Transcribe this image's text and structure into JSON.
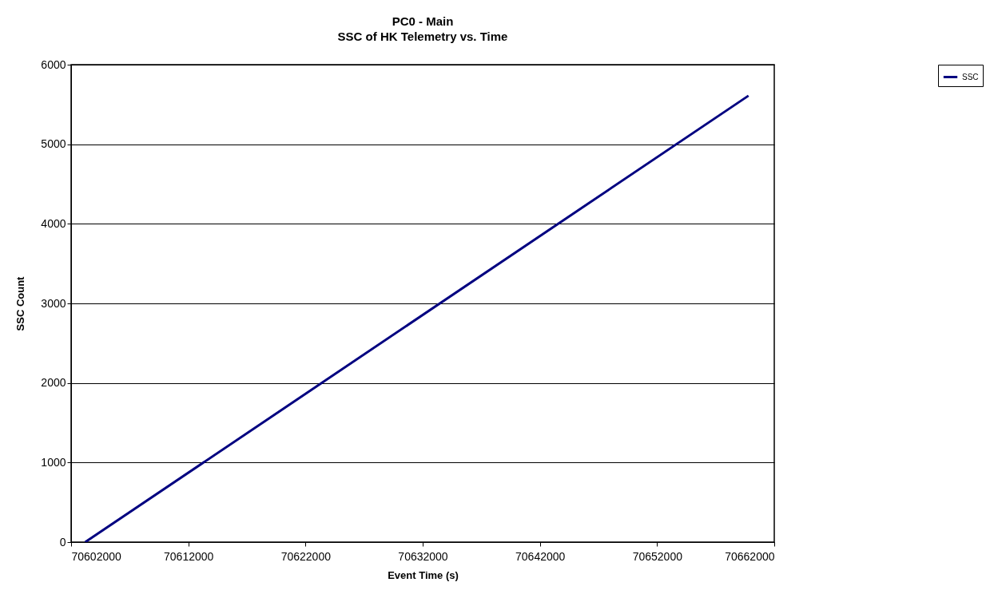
{
  "chart_data": {
    "type": "line",
    "title": "PC0 - Main",
    "subtitle": "SSC of HK Telemetry vs. Time",
    "xlabel": "Event Time (s)",
    "ylabel": "SSC Count",
    "series": [
      {
        "name": "SSC",
        "color": "#000080",
        "x": [
          70603200,
          70659800
        ],
        "values": [
          0,
          5610
        ]
      }
    ],
    "xlim": [
      70602000,
      70662000
    ],
    "xticks": [
      70602000,
      70612000,
      70622000,
      70632000,
      70642000,
      70652000,
      70662000
    ],
    "ylim": [
      0,
      6000
    ],
    "yticks": [
      0,
      1000,
      2000,
      3000,
      4000,
      5000,
      6000
    ],
    "grid": "y",
    "legend": "right",
    "marker": "none",
    "line_style": "solid"
  }
}
